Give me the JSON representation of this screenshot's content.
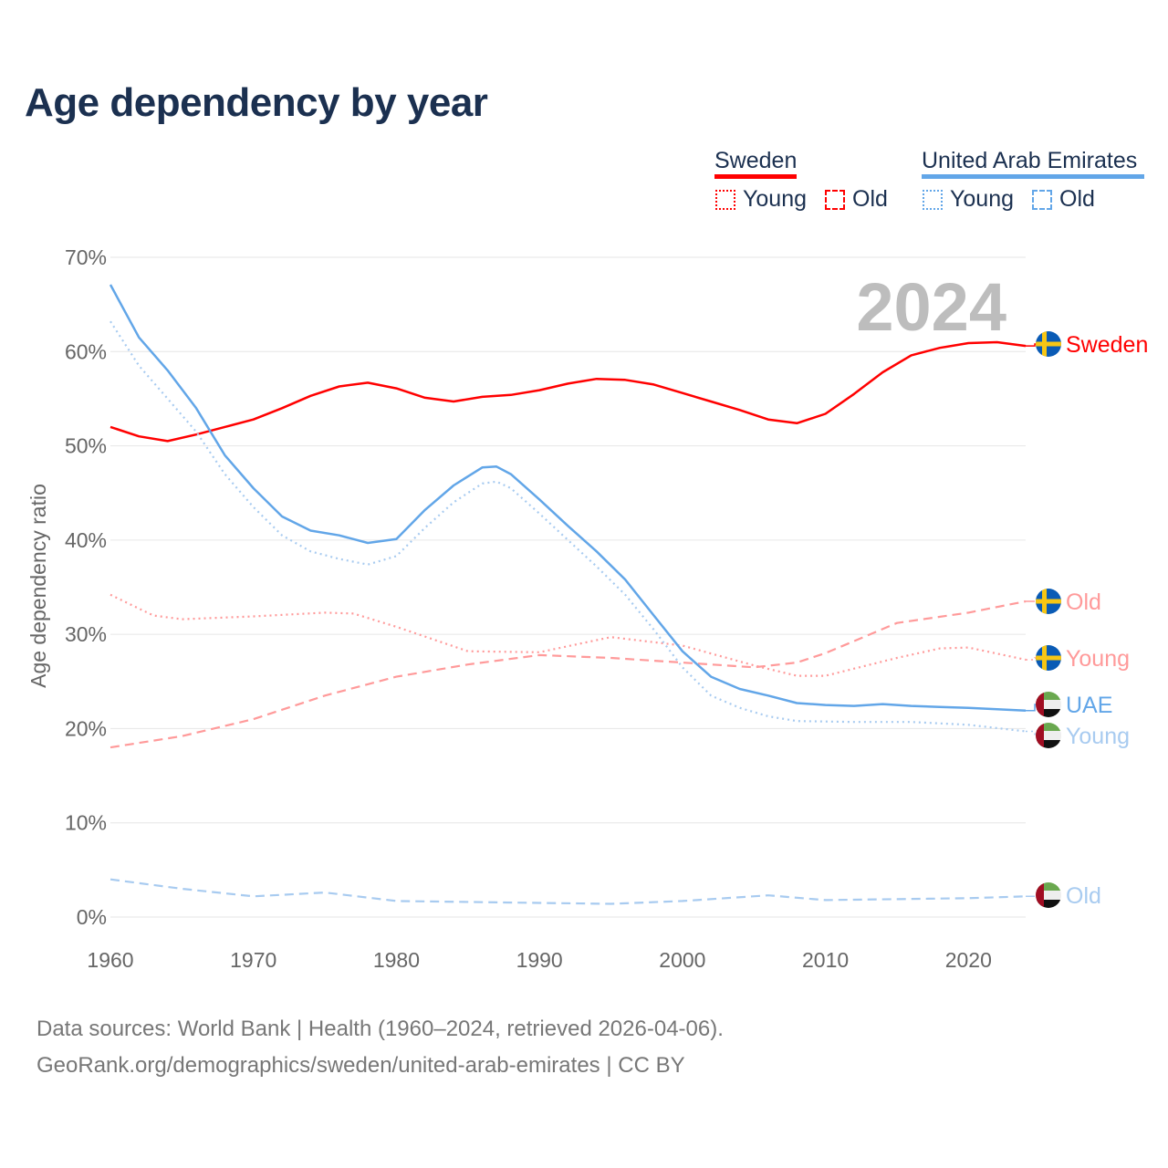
{
  "chart_data": {
    "type": "line",
    "title": "Age dependency by year",
    "ylabel": "Age dependency ratio",
    "xlabel": "",
    "xlim": [
      1960,
      2024
    ],
    "ylim": [
      0,
      70
    ],
    "xticks": [
      1960,
      1970,
      1980,
      1990,
      2000,
      2010,
      2020
    ],
    "yticks": [
      "0%",
      "10%",
      "20%",
      "30%",
      "40%",
      "50%",
      "60%",
      "70%"
    ],
    "yticks_values": [
      0,
      10,
      20,
      30,
      40,
      50,
      60,
      70
    ],
    "grid": true,
    "year_watermark": "2024",
    "legend": {
      "placement": "top-right",
      "groups": [
        {
          "name": "Sweden",
          "color": "#ff0000",
          "items": [
            "Young",
            "Old"
          ]
        },
        {
          "name": "United Arab Emirates",
          "color": "#62a6e8",
          "items": [
            "Young",
            "Old"
          ]
        }
      ]
    },
    "series": [
      {
        "name": "Sweden",
        "label": "Sweden",
        "country": "sweden",
        "style": "solid",
        "color": "#ff0000",
        "x": [
          1960,
          1962,
          1964,
          1966,
          1968,
          1970,
          1972,
          1974,
          1976,
          1978,
          1980,
          1982,
          1984,
          1986,
          1988,
          1990,
          1992,
          1994,
          1996,
          1998,
          2000,
          2002,
          2004,
          2006,
          2008,
          2010,
          2012,
          2014,
          2016,
          2018,
          2020,
          2022,
          2024
        ],
        "y": [
          52.0,
          51.0,
          50.5,
          51.2,
          52.0,
          52.8,
          54.0,
          55.3,
          56.3,
          56.7,
          56.1,
          55.1,
          54.7,
          55.2,
          55.4,
          55.9,
          56.6,
          57.1,
          57.0,
          56.5,
          55.6,
          54.7,
          53.8,
          52.8,
          52.4,
          53.4,
          55.5,
          57.8,
          59.6,
          60.4,
          60.9,
          61.0,
          60.6
        ]
      },
      {
        "name": "Sweden Old",
        "label": "Old",
        "country": "sweden",
        "style": "dashed",
        "color": "#ff9a9a",
        "x": [
          1960,
          1965,
          1970,
          1975,
          1980,
          1985,
          1990,
          1995,
          2000,
          2005,
          2008,
          2010,
          2015,
          2020,
          2024
        ],
        "y": [
          18.0,
          19.2,
          21.0,
          23.5,
          25.5,
          26.8,
          27.8,
          27.5,
          27.0,
          26.5,
          27.0,
          28.0,
          31.2,
          32.3,
          33.5
        ]
      },
      {
        "name": "Sweden Young",
        "label": "Young",
        "country": "sweden",
        "style": "dotted",
        "color": "#ff9a9a",
        "x": [
          1960,
          1963,
          1965,
          1970,
          1975,
          1977,
          1980,
          1985,
          1990,
          1995,
          2000,
          2005,
          2008,
          2010,
          2015,
          2018,
          2020,
          2024
        ],
        "y": [
          34.2,
          32.0,
          31.6,
          31.9,
          32.3,
          32.2,
          30.8,
          28.2,
          28.1,
          29.7,
          28.8,
          26.7,
          25.6,
          25.6,
          27.5,
          28.5,
          28.6,
          27.3
        ]
      },
      {
        "name": "United Arab Emirates",
        "label": "UAE",
        "country": "uae",
        "style": "solid",
        "color": "#62a6e8",
        "x": [
          1960,
          1962,
          1964,
          1966,
          1968,
          1970,
          1972,
          1974,
          1976,
          1978,
          1980,
          1982,
          1984,
          1986,
          1987,
          1988,
          1990,
          1992,
          1994,
          1996,
          1998,
          2000,
          2002,
          2004,
          2006,
          2008,
          2010,
          2012,
          2014,
          2016,
          2018,
          2020,
          2024
        ],
        "y": [
          67.1,
          61.5,
          58.0,
          54.0,
          49.0,
          45.5,
          42.5,
          41.0,
          40.5,
          39.7,
          40.1,
          43.2,
          45.8,
          47.7,
          47.8,
          47.0,
          44.3,
          41.5,
          38.8,
          35.8,
          32.0,
          28.2,
          25.5,
          24.2,
          23.5,
          22.7,
          22.5,
          22.4,
          22.6,
          22.4,
          22.3,
          22.2,
          21.9
        ]
      },
      {
        "name": "United Arab Emirates Young",
        "label": "Young",
        "country": "uae",
        "style": "dotted",
        "color": "#a8cbf0",
        "x": [
          1960,
          1962,
          1964,
          1966,
          1968,
          1970,
          1972,
          1974,
          1976,
          1978,
          1980,
          1982,
          1984,
          1986,
          1987,
          1988,
          1990,
          1992,
          1994,
          1996,
          1998,
          2000,
          2002,
          2004,
          2006,
          2008,
          2012,
          2016,
          2020,
          2024
        ],
        "y": [
          63.2,
          58.5,
          55.0,
          51.5,
          47.0,
          43.5,
          40.5,
          38.8,
          38.0,
          37.4,
          38.3,
          41.3,
          44.0,
          46.0,
          46.2,
          45.5,
          42.8,
          40.0,
          37.2,
          34.2,
          30.5,
          26.5,
          23.5,
          22.2,
          21.3,
          20.8,
          20.7,
          20.7,
          20.4,
          19.7
        ]
      },
      {
        "name": "United Arab Emirates Old",
        "label": "Old",
        "country": "uae",
        "style": "dashed",
        "color": "#a8cbf0",
        "x": [
          1960,
          1965,
          1970,
          1975,
          1980,
          1990,
          1995,
          2000,
          2006,
          2010,
          2020,
          2024
        ],
        "y": [
          4.0,
          3.0,
          2.2,
          2.6,
          1.7,
          1.5,
          1.4,
          1.7,
          2.3,
          1.8,
          2.0,
          2.2
        ]
      }
    ]
  },
  "footer": {
    "line1": "Data sources: World Bank | Health (1960–2024, retrieved 2026-04-06).",
    "line2": "GeoRank.org/demographics/sweden/united-arab-emirates | CC BY"
  }
}
